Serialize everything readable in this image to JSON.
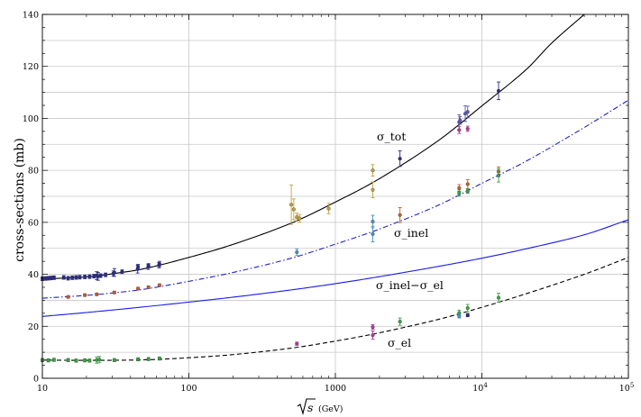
{
  "chart_data": {
    "type": "scatter",
    "x_scale": "log",
    "xlim": [
      10,
      100000
    ],
    "ylim": [
      0,
      140
    ],
    "grid": true,
    "xticks": [
      "10",
      "100",
      "1000",
      "10^4",
      "10^5"
    ],
    "yticks": [
      "0",
      "20",
      "40",
      "60",
      "80",
      "100",
      "120",
      "140"
    ],
    "ylabel": "cross-sections   (mb)",
    "xlabel": {
      "root": "s",
      "unit": "(GeV)"
    },
    "annotations": [
      "σ_tot",
      "σ_inel",
      "σ_inel−σ_el",
      "σ_el"
    ],
    "curves": [
      {
        "name": "σ_tot",
        "style": "solid",
        "color": "#000000",
        "points": [
          [
            10,
            38.2
          ],
          [
            20,
            39.0
          ],
          [
            30,
            40.2
          ],
          [
            50,
            42.2
          ],
          [
            100,
            46.5
          ],
          [
            200,
            51.5
          ],
          [
            500,
            59.7
          ],
          [
            1000,
            67.8
          ],
          [
            2000,
            76.8
          ],
          [
            5000,
            91.3
          ],
          [
            10000,
            104.8
          ],
          [
            20000,
            118.7
          ],
          [
            30000,
            129.0
          ],
          [
            50000,
            140.0
          ]
        ]
      },
      {
        "name": "σ_inel",
        "style": "dashdot",
        "color": "#2222cc",
        "points": [
          [
            10,
            30.8
          ],
          [
            20,
            31.9
          ],
          [
            30,
            32.8
          ],
          [
            50,
            34.3
          ],
          [
            100,
            37.3
          ],
          [
            200,
            40.7
          ],
          [
            500,
            46.2
          ],
          [
            1000,
            51.6
          ],
          [
            2000,
            57.4
          ],
          [
            5000,
            66.5
          ],
          [
            10000,
            75.0
          ],
          [
            20000,
            83.5
          ],
          [
            50000,
            96.5
          ],
          [
            100000,
            107.0
          ]
        ]
      },
      {
        "name": "σ_inel−σ_el",
        "style": "solid",
        "color": "#1a1aee",
        "points": [
          [
            10,
            23.8
          ],
          [
            20,
            25.3
          ],
          [
            50,
            27.5
          ],
          [
            100,
            29.3
          ],
          [
            200,
            31.2
          ],
          [
            500,
            34.0
          ],
          [
            1000,
            36.4
          ],
          [
            2000,
            39.1
          ],
          [
            5000,
            43.0
          ],
          [
            10000,
            46.2
          ],
          [
            20000,
            49.8
          ],
          [
            50000,
            55.2
          ],
          [
            100000,
            61.0
          ]
        ]
      },
      {
        "name": "σ_el",
        "style": "dashed",
        "color": "#000000",
        "points": [
          [
            10,
            7.0
          ],
          [
            20,
            6.9
          ],
          [
            50,
            7.1
          ],
          [
            100,
            7.9
          ],
          [
            200,
            9.1
          ],
          [
            500,
            11.6
          ],
          [
            1000,
            14.3
          ],
          [
            2000,
            17.5
          ],
          [
            5000,
            22.6
          ],
          [
            10000,
            27.3
          ],
          [
            20000,
            32.5
          ],
          [
            50000,
            40.0
          ],
          [
            100000,
            46.5
          ]
        ]
      }
    ],
    "data_points": [
      {
        "x": 10.0,
        "y": 38.3,
        "err": 0.7,
        "color": "#2a2a8a"
      },
      {
        "x": 10.5,
        "y": 38.4,
        "err": 0.7,
        "color": "#2a2a8a"
      },
      {
        "x": 11.0,
        "y": 38.5,
        "err": 0.7,
        "color": "#2a2a8a"
      },
      {
        "x": 11.5,
        "y": 38.6,
        "err": 0.7,
        "color": "#2a2a8a"
      },
      {
        "x": 12.0,
        "y": 38.7,
        "err": 0.7,
        "color": "#2a2a8a"
      },
      {
        "x": 14.0,
        "y": 38.8,
        "err": 0.7,
        "color": "#2a2a8a"
      },
      {
        "x": 15.0,
        "y": 38.5,
        "err": 0.7,
        "color": "#2a2a8a"
      },
      {
        "x": 16.0,
        "y": 38.7,
        "err": 0.7,
        "color": "#2a2a8a"
      },
      {
        "x": 17.0,
        "y": 38.8,
        "err": 0.7,
        "color": "#2a2a8a"
      },
      {
        "x": 18.0,
        "y": 38.9,
        "err": 0.7,
        "color": "#2a2a8a"
      },
      {
        "x": 19.5,
        "y": 39.0,
        "err": 0.7,
        "color": "#2a2a8a"
      },
      {
        "x": 21.0,
        "y": 39.1,
        "err": 0.7,
        "color": "#2a2a8a"
      },
      {
        "x": 22.5,
        "y": 39.3,
        "err": 0.7,
        "color": "#2a2a8a"
      },
      {
        "x": 23.5,
        "y": 39.5,
        "err": 1.5,
        "color": "#2a2a8a"
      },
      {
        "x": 24.0,
        "y": 39.2,
        "err": 1.5,
        "color": "#2a2a8a"
      },
      {
        "x": 25.0,
        "y": 39.5,
        "err": 0.7,
        "color": "#2a2a8a"
      },
      {
        "x": 27.0,
        "y": 39.8,
        "err": 0.7,
        "color": "#2a2a8a"
      },
      {
        "x": 30.5,
        "y": 40.3,
        "err": 1.0,
        "color": "#2a2a8a"
      },
      {
        "x": 31.0,
        "y": 40.7,
        "err": 1.5,
        "color": "#2a2a8a"
      },
      {
        "x": 35.0,
        "y": 41.0,
        "err": 0.7,
        "color": "#2a2a8a"
      },
      {
        "x": 44.7,
        "y": 42.0,
        "err": 1.5,
        "color": "#2a2a8a"
      },
      {
        "x": 45.0,
        "y": 42.8,
        "err": 1.0,
        "color": "#2a2a8a"
      },
      {
        "x": 52.8,
        "y": 42.9,
        "err": 1.0,
        "color": "#2a2a8a"
      },
      {
        "x": 53.0,
        "y": 43.3,
        "err": 0.8,
        "color": "#2a2a8a"
      },
      {
        "x": 62.5,
        "y": 43.5,
        "err": 1.0,
        "color": "#2a2a8a"
      },
      {
        "x": 63.0,
        "y": 44.0,
        "err": 1.0,
        "color": "#2a2a8a"
      },
      {
        "x": 2760,
        "y": 84.5,
        "err": 3.0,
        "color": "#2a2a8a"
      },
      {
        "x": 7000,
        "y": 98.5,
        "err": 2.9,
        "color": "#5a5ab4"
      },
      {
        "x": 7100,
        "y": 99.2,
        "err": 1.5,
        "color": "#5a5ab4"
      },
      {
        "x": 7700,
        "y": 101.8,
        "err": 3.0,
        "color": "#5a5ab4"
      },
      {
        "x": 8000,
        "y": 102.5,
        "err": 2.2,
        "color": "#5a5ab4"
      },
      {
        "x": 13000,
        "y": 110.6,
        "err": 3.4,
        "color": "#2a2a8a"
      },
      {
        "x": 7000,
        "y": 95.5,
        "err": 1.3,
        "color": "#b03a9a"
      },
      {
        "x": 8000,
        "y": 96.0,
        "err": 1.0,
        "color": "#b03a9a"
      },
      {
        "x": 15.0,
        "y": 31.3,
        "err": 0.5,
        "color": "#c06030"
      },
      {
        "x": 19.5,
        "y": 32.0,
        "err": 0.5,
        "color": "#c06030"
      },
      {
        "x": 23.5,
        "y": 32.3,
        "err": 0.5,
        "color": "#c06030"
      },
      {
        "x": 31.0,
        "y": 33.0,
        "err": 0.5,
        "color": "#c06030"
      },
      {
        "x": 45.0,
        "y": 34.5,
        "err": 0.5,
        "color": "#c06030"
      },
      {
        "x": 53.0,
        "y": 35.0,
        "err": 0.5,
        "color": "#c06030"
      },
      {
        "x": 63.0,
        "y": 35.8,
        "err": 0.5,
        "color": "#c06030"
      },
      {
        "x": 500,
        "y": 66.8,
        "err": 7.6,
        "color": "#c0a040"
      },
      {
        "x": 520,
        "y": 65.0,
        "err": 4.0,
        "color": "#c0a040"
      },
      {
        "x": 546,
        "y": 62.0,
        "err": 1.5,
        "color": "#c0a040"
      },
      {
        "x": 570,
        "y": 61.5,
        "err": 1.5,
        "color": "#c0a040"
      },
      {
        "x": 900,
        "y": 65.3,
        "err": 2.0,
        "color": "#c0a040"
      },
      {
        "x": 1800,
        "y": 80.0,
        "err": 2.2,
        "color": "#c0a040"
      },
      {
        "x": 1800,
        "y": 72.5,
        "err": 3.0,
        "color": "#c0a040"
      },
      {
        "x": 2760,
        "y": 62.8,
        "err": 2.9,
        "color": "#c06030"
      },
      {
        "x": 7000,
        "y": 73.2,
        "err": 1.3,
        "color": "#c06030"
      },
      {
        "x": 8000,
        "y": 74.7,
        "err": 1.7,
        "color": "#c06030"
      },
      {
        "x": 13000,
        "y": 79.5,
        "err": 1.8,
        "color": "#c06030"
      },
      {
        "x": 546,
        "y": 48.5,
        "err": 1.3,
        "color": "#4a90c0"
      },
      {
        "x": 1800,
        "y": 60.3,
        "err": 2.4,
        "color": "#4a90c0"
      },
      {
        "x": 1800,
        "y": 55.5,
        "err": 3.0,
        "color": "#4a90c0"
      },
      {
        "x": 7000,
        "y": 71.3,
        "err": 1.2,
        "color": "#3aa040"
      },
      {
        "x": 8000,
        "y": 72.0,
        "err": 0.8,
        "color": "#3aa040"
      },
      {
        "x": 13000,
        "y": 78.0,
        "err": 2.5,
        "color": "#3aa040"
      },
      {
        "x": 10.0,
        "y": 7.0,
        "err": 0.6,
        "color": "#3aa040"
      },
      {
        "x": 11.0,
        "y": 6.9,
        "err": 0.6,
        "color": "#3aa040"
      },
      {
        "x": 12.0,
        "y": 7.1,
        "err": 0.6,
        "color": "#3aa040"
      },
      {
        "x": 15.0,
        "y": 7.0,
        "err": 0.6,
        "color": "#3aa040"
      },
      {
        "x": 17.0,
        "y": 6.8,
        "err": 0.6,
        "color": "#3aa040"
      },
      {
        "x": 19.5,
        "y": 6.9,
        "err": 0.6,
        "color": "#3aa040"
      },
      {
        "x": 21.0,
        "y": 6.8,
        "err": 0.6,
        "color": "#3aa040"
      },
      {
        "x": 23.5,
        "y": 7.0,
        "err": 1.2,
        "color": "#3aa040"
      },
      {
        "x": 24.5,
        "y": 7.2,
        "err": 1.2,
        "color": "#3aa040"
      },
      {
        "x": 31.0,
        "y": 7.0,
        "err": 0.6,
        "color": "#3aa040"
      },
      {
        "x": 45.0,
        "y": 7.3,
        "err": 0.6,
        "color": "#3aa040"
      },
      {
        "x": 53.0,
        "y": 7.4,
        "err": 0.6,
        "color": "#3aa040"
      },
      {
        "x": 63.0,
        "y": 7.6,
        "err": 0.6,
        "color": "#3aa040"
      },
      {
        "x": 546,
        "y": 13.3,
        "err": 0.6,
        "color": "#b03a9a"
      },
      {
        "x": 1800,
        "y": 19.7,
        "err": 0.9,
        "color": "#b03a9a"
      },
      {
        "x": 1800,
        "y": 16.6,
        "err": 1.6,
        "color": "#b03a9a"
      },
      {
        "x": 2760,
        "y": 21.8,
        "err": 1.4,
        "color": "#3aa040"
      },
      {
        "x": 7000,
        "y": 25.1,
        "err": 1.1,
        "color": "#3aa040"
      },
      {
        "x": 7000,
        "y": 24.0,
        "err": 0.8,
        "color": "#4a90c0"
      },
      {
        "x": 8000,
        "y": 24.3,
        "err": 0.6,
        "color": "#2a2a8a"
      },
      {
        "x": 8000,
        "y": 27.0,
        "err": 1.4,
        "color": "#3aa040"
      },
      {
        "x": 13000,
        "y": 31.0,
        "err": 1.7,
        "color": "#3aa040"
      }
    ]
  }
}
